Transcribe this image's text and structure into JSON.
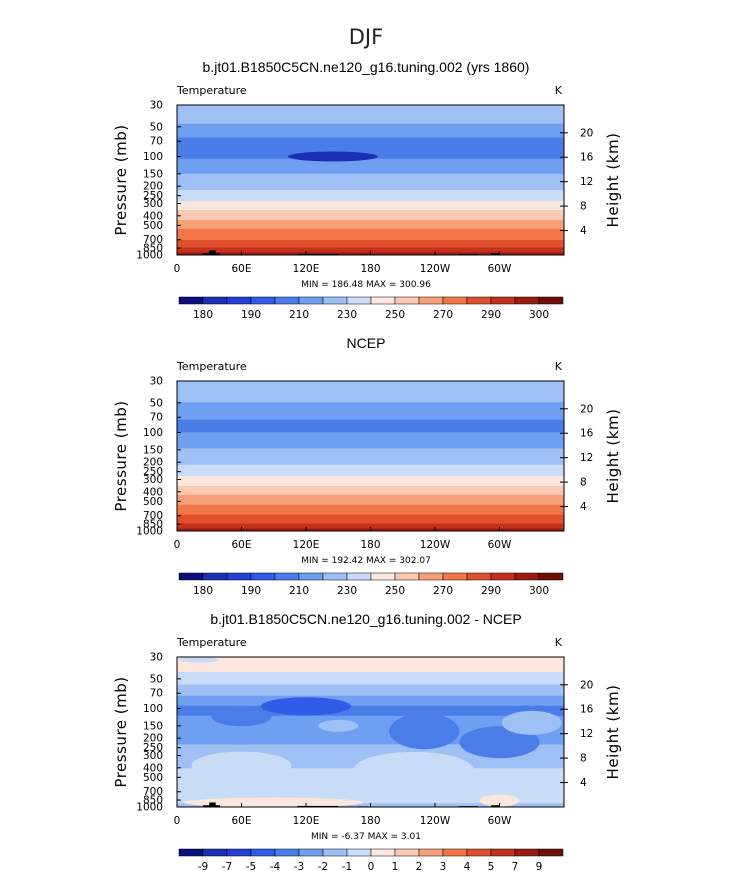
{
  "figure": {
    "suptitle": "DJF",
    "colors": {
      "abs": [
        "#0a0f7a",
        "#1a2fb3",
        "#2540d3",
        "#2f5be6",
        "#4a7de8",
        "#6f9ff0",
        "#9ec0f5",
        "#c8dcf8",
        "#fbe7de",
        "#f8c9b0",
        "#f6a07a",
        "#f27748",
        "#e0502a",
        "#c3301d",
        "#991b12",
        "#6e0e08"
      ],
      "diff": [
        "#0a0f7a",
        "#1a2fb3",
        "#2540d3",
        "#2f5be6",
        "#4a7de8",
        "#6f9ff0",
        "#9ec0f5",
        "#c8dcf8",
        "#fbe7de",
        "#f8c9b0",
        "#f6a07a",
        "#f27748",
        "#e0502a",
        "#c3301d",
        "#991b12",
        "#6e0e08"
      ],
      "land": "#000000"
    }
  },
  "chart_data": [
    {
      "type": "heatmap",
      "title": "b.jt01.B1850C5CN.ne120_g16.tuning.002 (yrs 1860)",
      "left_label": "Temperature",
      "right_label": "K",
      "ylabel": "Pressure (mb)",
      "y2label": "Height (km)",
      "x_ticks": [
        "0",
        "60E",
        "120E",
        "180",
        "120W",
        "60W"
      ],
      "x_tick_lon": [
        0,
        60,
        120,
        180,
        240,
        300
      ],
      "xlim": [
        0,
        360
      ],
      "y_ticks": [
        "30",
        "50",
        "70",
        "100",
        "150",
        "200",
        "250",
        "300",
        "400",
        "500",
        "700",
        "850",
        "1000"
      ],
      "y_tick_p": [
        30,
        50,
        70,
        100,
        150,
        200,
        250,
        300,
        400,
        500,
        700,
        850,
        1000
      ],
      "ylim": [
        1000,
        30
      ],
      "y2_ticks": [
        "20",
        "16",
        "12",
        "8",
        "4"
      ],
      "y2_tick_km": [
        20,
        16,
        12,
        8,
        4
      ],
      "min_max": "MIN = 186.48  MAX = 300.96",
      "min": 186.48,
      "max": 300.96,
      "colorbar_labels": [
        "180",
        "190",
        "210",
        "230",
        "250",
        "270",
        "290",
        "300"
      ],
      "levels": [
        175,
        180,
        185,
        190,
        200,
        210,
        220,
        230,
        240,
        250,
        260,
        270,
        280,
        290,
        295,
        300
      ],
      "profile": [
        {
          "p": 30,
          "v": 218
        },
        {
          "p": 40,
          "v": 214
        },
        {
          "p": 50,
          "v": 208
        },
        {
          "p": 60,
          "v": 202
        },
        {
          "p": 70,
          "v": 198
        },
        {
          "p": 85,
          "v": 195
        },
        {
          "p": 100,
          "v": 198
        },
        {
          "p": 120,
          "v": 204
        },
        {
          "p": 150,
          "v": 210
        },
        {
          "p": 200,
          "v": 217
        },
        {
          "p": 250,
          "v": 225
        },
        {
          "p": 300,
          "v": 232
        },
        {
          "p": 400,
          "v": 246
        },
        {
          "p": 500,
          "v": 256
        },
        {
          "p": 600,
          "v": 264
        },
        {
          "p": 700,
          "v": 270
        },
        {
          "p": 850,
          "v": 280
        },
        {
          "p": 925,
          "v": 287
        },
        {
          "p": 1000,
          "v": 294
        }
      ],
      "land": [
        [
          24,
          40,
          960
        ],
        [
          30,
          36,
          900
        ],
        [
          112,
          150,
          975
        ],
        [
          168,
          178,
          985
        ],
        [
          262,
          280,
          980
        ],
        [
          292,
          300,
          960
        ]
      ]
    },
    {
      "type": "heatmap",
      "title": "NCEP",
      "left_label": "Temperature",
      "right_label": "K",
      "ylabel": "Pressure (mb)",
      "y2label": "Height (km)",
      "x_ticks": [
        "0",
        "60E",
        "120E",
        "180",
        "120W",
        "60W"
      ],
      "x_tick_lon": [
        0,
        60,
        120,
        180,
        240,
        300
      ],
      "xlim": [
        0,
        360
      ],
      "y_ticks": [
        "30",
        "50",
        "70",
        "100",
        "150",
        "200",
        "250",
        "300",
        "400",
        "500",
        "700",
        "850",
        "1000"
      ],
      "y_tick_p": [
        30,
        50,
        70,
        100,
        150,
        200,
        250,
        300,
        400,
        500,
        700,
        850,
        1000
      ],
      "ylim": [
        1000,
        30
      ],
      "y2_ticks": [
        "20",
        "16",
        "12",
        "8",
        "4"
      ],
      "y2_tick_km": [
        20,
        16,
        12,
        8,
        4
      ],
      "min_max": "MIN = 192.42  MAX = 302.07",
      "min": 192.42,
      "max": 302.07,
      "colorbar_labels": [
        "180",
        "190",
        "210",
        "230",
        "250",
        "270",
        "290",
        "300"
      ],
      "levels": [
        175,
        180,
        185,
        190,
        200,
        210,
        220,
        230,
        240,
        250,
        260,
        270,
        280,
        290,
        295,
        300
      ],
      "profile": [
        {
          "p": 30,
          "v": 219
        },
        {
          "p": 40,
          "v": 215
        },
        {
          "p": 50,
          "v": 210
        },
        {
          "p": 60,
          "v": 205
        },
        {
          "p": 70,
          "v": 201
        },
        {
          "p": 85,
          "v": 198
        },
        {
          "p": 100,
          "v": 200
        },
        {
          "p": 120,
          "v": 205
        },
        {
          "p": 150,
          "v": 211
        },
        {
          "p": 200,
          "v": 218
        },
        {
          "p": 250,
          "v": 226
        },
        {
          "p": 300,
          "v": 233
        },
        {
          "p": 400,
          "v": 247
        },
        {
          "p": 500,
          "v": 257
        },
        {
          "p": 600,
          "v": 265
        },
        {
          "p": 700,
          "v": 271
        },
        {
          "p": 850,
          "v": 281
        },
        {
          "p": 925,
          "v": 288
        },
        {
          "p": 1000,
          "v": 295
        }
      ],
      "land": []
    },
    {
      "type": "heatmap",
      "title": "b.jt01.B1850C5CN.ne120_g16.tuning.002 - NCEP",
      "left_label": "Temperature",
      "right_label": "K",
      "ylabel": "Pressure (mb)",
      "y2label": "Height (km)",
      "x_ticks": [
        "0",
        "60E",
        "120E",
        "180",
        "120W",
        "60W"
      ],
      "x_tick_lon": [
        0,
        60,
        120,
        180,
        240,
        300
      ],
      "xlim": [
        0,
        360
      ],
      "y_ticks": [
        "30",
        "50",
        "70",
        "100",
        "150",
        "200",
        "250",
        "300",
        "400",
        "500",
        "700",
        "850",
        "1000"
      ],
      "y_tick_p": [
        30,
        50,
        70,
        100,
        150,
        200,
        250,
        300,
        400,
        500,
        700,
        850,
        1000
      ],
      "ylim": [
        1000,
        30
      ],
      "y2_ticks": [
        "20",
        "16",
        "12",
        "8",
        "4"
      ],
      "y2_tick_km": [
        20,
        16,
        12,
        8,
        4
      ],
      "min_max": "MIN =  -6.37  MAX =    3.01",
      "min": -6.37,
      "max": 3.01,
      "colorbar_labels": [
        "-9",
        "-7",
        "-5",
        "-4",
        "-3",
        "-2",
        "-1",
        "0",
        "1",
        "2",
        "3",
        "4",
        "5",
        "7",
        "9"
      ],
      "levels": [
        -9,
        -7,
        -5,
        -4,
        -3,
        -2,
        -1,
        0,
        1,
        2,
        3,
        4,
        5,
        7,
        9
      ],
      "profile": [
        {
          "p": 30,
          "v": 0.5
        },
        {
          "p": 40,
          "v": 0.2
        },
        {
          "p": 50,
          "v": -0.5
        },
        {
          "p": 60,
          "v": -1.2
        },
        {
          "p": 70,
          "v": -1.8
        },
        {
          "p": 85,
          "v": -2.6
        },
        {
          "p": 100,
          "v": -3.2
        },
        {
          "p": 120,
          "v": -3.0
        },
        {
          "p": 150,
          "v": -2.8
        },
        {
          "p": 200,
          "v": -2.4
        },
        {
          "p": 250,
          "v": -1.8
        },
        {
          "p": 300,
          "v": -1.4
        },
        {
          "p": 400,
          "v": -1.0
        },
        {
          "p": 500,
          "v": -0.8
        },
        {
          "p": 600,
          "v": -0.6
        },
        {
          "p": 700,
          "v": -0.4
        },
        {
          "p": 850,
          "v": -0.2
        },
        {
          "p": 925,
          "v": -1.2
        },
        {
          "p": 1000,
          "v": -1.8
        }
      ],
      "land": [
        [
          24,
          40,
          960
        ],
        [
          30,
          36,
          900
        ],
        [
          112,
          150,
          975
        ],
        [
          168,
          178,
          985
        ],
        [
          262,
          280,
          980
        ],
        [
          292,
          300,
          960
        ]
      ]
    }
  ]
}
